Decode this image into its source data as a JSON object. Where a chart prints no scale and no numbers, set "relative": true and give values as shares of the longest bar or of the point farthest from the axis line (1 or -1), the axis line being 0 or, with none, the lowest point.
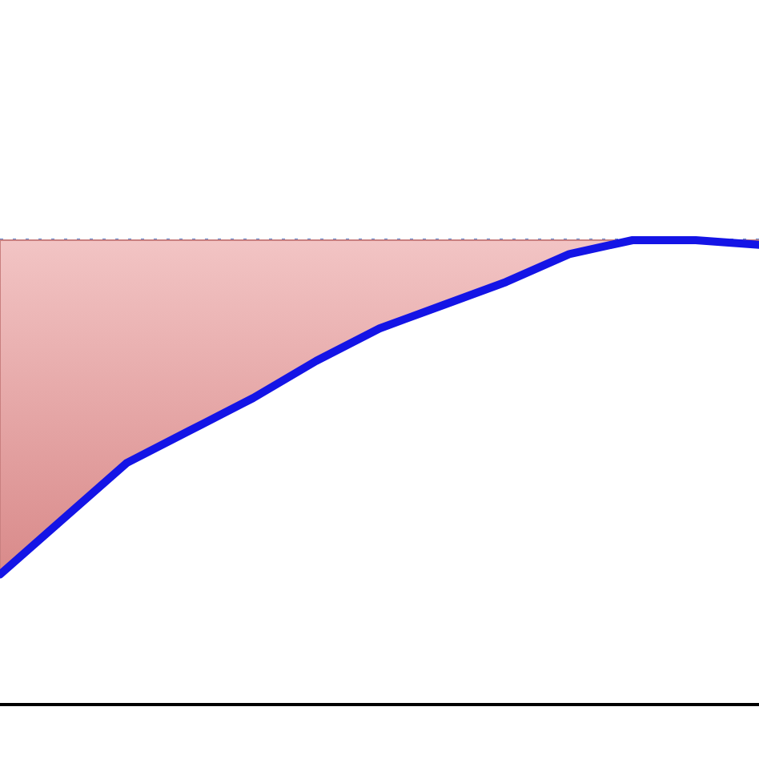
{
  "chart_data": {
    "type": "line",
    "relative": true,
    "categories": [
      null,
      null,
      null,
      null,
      null,
      null,
      null,
      null,
      null,
      null,
      null,
      null,
      null
    ],
    "series": [
      {
        "color": "#1414e6",
        "values": [
          0.28,
          0.4,
          0.52,
          0.59,
          0.66,
          0.74,
          0.81,
          0.86,
          0.91,
          0.97,
          1,
          1,
          0.99
        ],
        "lower": [
          0.28,
          0.4,
          0.52,
          0.59,
          0.66,
          0.74,
          0.81,
          0.86,
          0.91,
          0.97,
          1,
          1,
          0.99
        ],
        "upper": [
          1,
          1,
          1,
          1,
          1,
          1,
          1,
          1,
          1,
          1,
          1,
          1,
          1
        ]
      }
    ],
    "ref_lines": [
      {
        "axis": "y",
        "value": 1,
        "color": "#5b7fc7",
        "line_style": "dotted"
      }
    ],
    "grid": false,
    "marker": "none",
    "line_style": "solid"
  }
}
